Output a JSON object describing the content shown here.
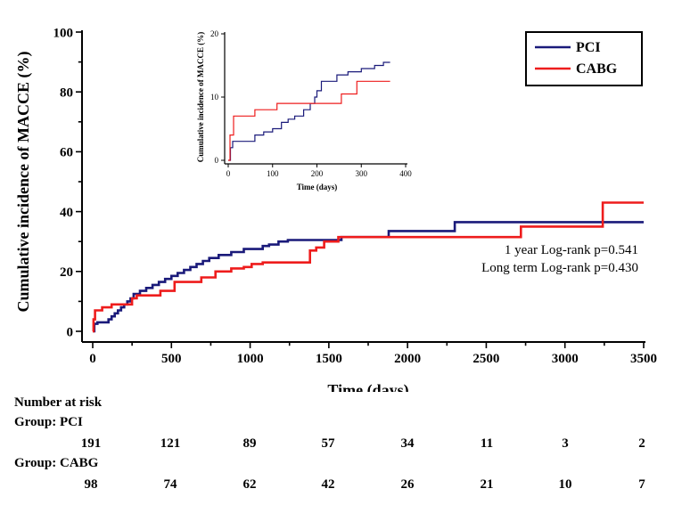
{
  "chart_data": [
    {
      "id": "main",
      "type": "line",
      "step": true,
      "title": "",
      "xlabel": "Time (days)",
      "ylabel": "Cumulative incidence of MACCE (%)",
      "xlim": [
        0,
        3500
      ],
      "ylim": [
        0,
        100
      ],
      "xticks": [
        0,
        500,
        1000,
        1500,
        2000,
        2500,
        3000,
        3500
      ],
      "yticks": [
        0,
        20,
        40,
        60,
        80,
        100
      ],
      "grid": false,
      "legend_position": "top-right",
      "series": [
        {
          "name": "PCI",
          "color": "#1a1a7a",
          "x": [
            0,
            10,
            30,
            60,
            100,
            120,
            140,
            160,
            180,
            200,
            220,
            240,
            260,
            300,
            340,
            380,
            420,
            460,
            500,
            540,
            580,
            620,
            660,
            700,
            740,
            800,
            880,
            960,
            1000,
            1080,
            1120,
            1180,
            1240,
            1300,
            1580,
            1880,
            2300,
            3500
          ],
          "y": [
            0,
            2.5,
            3,
            3,
            4,
            5,
            6,
            7,
            8,
            9,
            10,
            11,
            12.5,
            13.5,
            14.5,
            15.5,
            16.5,
            17.5,
            18.5,
            19.5,
            20.5,
            21.5,
            22.5,
            23.5,
            24.5,
            25.5,
            26.5,
            27.5,
            27.5,
            28.5,
            29,
            30,
            30.5,
            30.5,
            31.5,
            33.5,
            36.5,
            36.5
          ]
        },
        {
          "name": "CABG",
          "color": "#ee1c1c",
          "x": [
            0,
            5,
            15,
            60,
            120,
            250,
            280,
            400,
            430,
            520,
            690,
            780,
            880,
            960,
            1010,
            1080,
            1380,
            1420,
            1470,
            1560,
            2720,
            3240,
            3500
          ],
          "y": [
            0,
            4,
            7,
            8,
            9,
            11,
            12,
            12,
            13.5,
            16.5,
            18,
            20,
            21,
            21.5,
            22.5,
            23,
            27,
            28,
            30,
            31.5,
            35,
            43,
            43
          ]
        }
      ],
      "annotations": [
        "1 year Log-rank  p=0.541",
        "Long term Log-rank  p=0.430"
      ]
    },
    {
      "id": "inset",
      "type": "line",
      "step": true,
      "title": "",
      "xlabel": "Time (days)",
      "ylabel": "Cumulative incidence of MACCE (%)",
      "xlim": [
        0,
        400
      ],
      "ylim": [
        0,
        20
      ],
      "xticks": [
        0,
        100,
        200,
        300,
        400
      ],
      "yticks": [
        0,
        10,
        20
      ],
      "grid": false,
      "series": [
        {
          "name": "PCI",
          "color": "#1a1a7a",
          "x": [
            0,
            5,
            10,
            30,
            60,
            80,
            100,
            120,
            135,
            150,
            170,
            185,
            195,
            200,
            210,
            225,
            245,
            270,
            300,
            330,
            350,
            365
          ],
          "y": [
            0,
            2,
            3,
            3,
            4,
            4.5,
            5,
            6,
            6.5,
            7,
            8,
            9,
            10,
            11,
            12.5,
            12.5,
            13.5,
            14,
            14.5,
            15,
            15.5,
            15.5
          ]
        },
        {
          "name": "CABG",
          "color": "#ee1c1c",
          "x": [
            0,
            4,
            12,
            60,
            110,
            180,
            255,
            290,
            365
          ],
          "y": [
            0,
            4,
            7,
            8,
            9,
            9,
            10.5,
            12.5,
            12.5
          ]
        }
      ]
    }
  ],
  "risk_table": {
    "title": "Number at risk",
    "groups": [
      {
        "label": "Group: PCI",
        "values": [
          "191",
          "121",
          "89",
          "57",
          "34",
          "11",
          "3",
          "2"
        ]
      },
      {
        "label": "Group: CABG",
        "values": [
          "98",
          "74",
          "62",
          "42",
          "26",
          "21",
          "10",
          "7"
        ]
      }
    ]
  }
}
